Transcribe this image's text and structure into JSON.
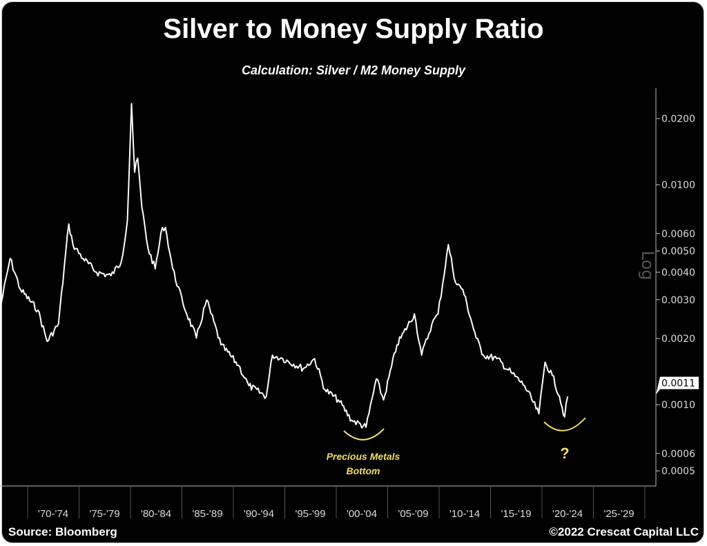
{
  "chart_data": {
    "type": "line",
    "title": "Silver to Money Supply Ratio",
    "subtitle": "Calculation: Silver / M2 Money Supply",
    "yscale": "log",
    "ylim": [
      0.00045,
      0.026
    ],
    "xlim": [
      1967.3,
      2030.5
    ],
    "y_ticks": [
      "0.0200",
      "0.0100",
      "0.0060",
      "0.0050",
      "0.0040",
      "0.0030",
      "0.0020",
      "0.0010",
      "0.0006",
      "0.0005"
    ],
    "y_tick_values": [
      0.02,
      0.01,
      0.006,
      0.005,
      0.004,
      0.003,
      0.002,
      0.001,
      0.0006,
      0.0005
    ],
    "y_axis_label": "Log",
    "last_value_label": "0.0011",
    "x_tick_labels": [
      "'70-'74",
      "'75-'79",
      "'80-'84",
      "'85-'89",
      "'90-'94",
      "'95-'99",
      "'00-'04",
      "'05-'09",
      "'10-'14",
      "'15-'19",
      "'20-'24",
      "'25-'29"
    ],
    "x_tick_starts": [
      1970,
      1975,
      1980,
      1985,
      1990,
      1995,
      2000,
      2005,
      2010,
      2015,
      2020,
      2025
    ],
    "series": [
      {
        "name": "Silver / M2",
        "color": "#ffffff",
        "x": [
          1967.3,
          1968.3,
          1969.3,
          1971.0,
          1971.9,
          1973.0,
          1974.0,
          1974.4,
          1975.4,
          1976.7,
          1978.1,
          1979.1,
          1979.7,
          1980.1,
          1980.4,
          1980.7,
          1981.1,
          1981.7,
          1982.4,
          1983.1,
          1983.4,
          1984.1,
          1985.1,
          1986.4,
          1987.4,
          1988.8,
          1990.5,
          1991.5,
          1993.2,
          1993.8,
          1994.8,
          1996.8,
          1997.9,
          1998.9,
          2000.2,
          2001.5,
          2002.9,
          2003.9,
          2004.6,
          2005.9,
          2007.6,
          2008.3,
          2009.3,
          2009.9,
          2010.9,
          2011.6,
          2012.3,
          2013.6,
          2014.3,
          2015.6,
          2017.0,
          2018.3,
          2019.7,
          2020.3,
          2021.0,
          2021.7,
          2022.2,
          2022.5
        ],
        "y": [
          0.00269,
          0.00462,
          0.00334,
          0.00269,
          0.00194,
          0.00233,
          0.00663,
          0.00534,
          0.00462,
          0.004,
          0.00386,
          0.00446,
          0.00687,
          0.0234,
          0.0114,
          0.0132,
          0.00794,
          0.00515,
          0.00415,
          0.0064,
          0.0064,
          0.00415,
          0.00289,
          0.00201,
          0.00299,
          0.00187,
          0.00151,
          0.00122,
          0.00109,
          0.00168,
          0.00162,
          0.00146,
          0.00162,
          0.00117,
          0.00105,
          0.00085,
          0.00079,
          0.00131,
          0.00105,
          0.00187,
          0.00259,
          0.00168,
          0.00233,
          0.00259,
          0.00534,
          0.00359,
          0.00334,
          0.00201,
          0.00168,
          0.00162,
          0.0014,
          0.00122,
          0.00091,
          0.00156,
          0.00136,
          0.00109,
          0.00088,
          0.00109
        ]
      }
    ],
    "annotations": [
      {
        "text_lines": [
          "Precious Metals",
          "Bottom"
        ],
        "color": "#f0e06a",
        "near_year": 2002.5
      },
      {
        "text_lines": [
          "?"
        ],
        "color": "#f0e06a",
        "near_year": 2021.5
      }
    ]
  },
  "footer": {
    "source": "Source: Bloomberg",
    "copyright": "©2022 Crescat Capital LLC"
  }
}
